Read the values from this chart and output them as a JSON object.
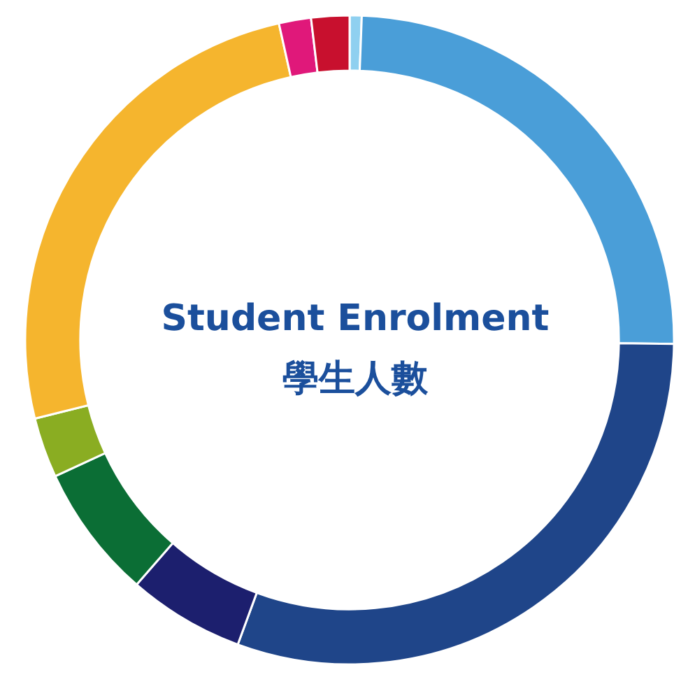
{
  "chart_data": {
    "type": "donut",
    "title": "Student Enrolment",
    "subtitle": "學生人數",
    "categories": [
      null,
      null,
      null,
      null,
      null,
      null,
      null,
      null,
      null
    ],
    "values": [
      0.6,
      24.6,
      30.4,
      5.8,
      6.7,
      3.0,
      25.4,
      1.6,
      1.9
    ],
    "colors": [
      "#8fd0f0",
      "#4a9ed8",
      "#1f4589",
      "#1c1f6e",
      "#0b6e35",
      "#8aad22",
      "#f5b52e",
      "#e0187a",
      "#c8102e"
    ]
  }
}
